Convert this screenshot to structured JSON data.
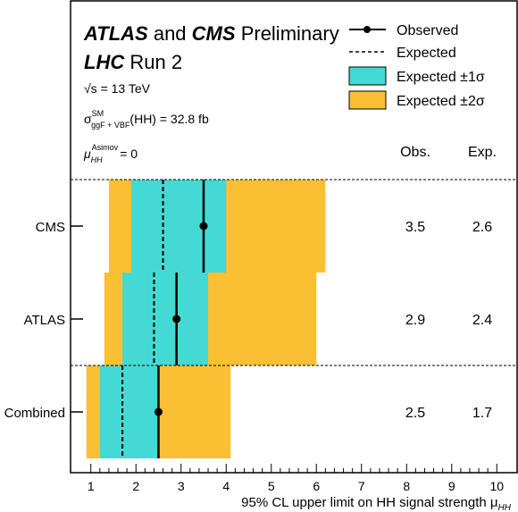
{
  "chart_data": {
    "type": "limit-plot",
    "title_parts": {
      "atlas": "ATLAS",
      "and": "and",
      "cms": "CMS",
      "preliminary": "Preliminary",
      "lhc": "LHC",
      "run": "Run 2"
    },
    "info_lines": {
      "energy": "√s = 13 TeV",
      "xsec_prefix": "σ",
      "xsec_sup": "SM",
      "xsec_sub": "ggF + VBF",
      "xsec_value": "(HH) = 32.8 fb",
      "mu_prefix": "μ",
      "mu_sub": "HH",
      "mu_sup": "Asimov",
      "mu_value": "= 0"
    },
    "legend": {
      "observed": "Observed",
      "expected": "Expected",
      "band1": "Expected ±1σ",
      "band2": "Expected ±2σ"
    },
    "column_headers": {
      "obs": "Obs.",
      "exp": "Exp."
    },
    "xlabel": "95% CL upper limit on HH signal strength μ",
    "xlabel_sub": "HH",
    "xlim": [
      0.55,
      10.45
    ],
    "xticks": [
      "1",
      "2",
      "3",
      "4",
      "5",
      "6",
      "7",
      "8",
      "9",
      "10"
    ],
    "colors": {
      "band1": "#45d9d3",
      "band2": "#f9c034"
    },
    "categories": [
      "CMS",
      "ATLAS",
      "Combined"
    ],
    "rows": [
      {
        "name": "CMS",
        "observed": 3.5,
        "expected": 2.6,
        "band1": [
          1.9,
          4.0
        ],
        "band2": [
          1.4,
          6.2
        ],
        "obs_label": "3.5",
        "exp_label": "2.6"
      },
      {
        "name": "ATLAS",
        "observed": 2.9,
        "expected": 2.4,
        "band1": [
          1.7,
          3.6
        ],
        "band2": [
          1.3,
          6.0
        ],
        "obs_label": "2.9",
        "exp_label": "2.4"
      },
      {
        "name": "Combined",
        "observed": 2.5,
        "expected": 1.7,
        "band1": [
          1.2,
          2.5
        ],
        "band2": [
          0.9,
          4.1
        ],
        "obs_label": "2.5",
        "exp_label": "1.7"
      }
    ]
  }
}
